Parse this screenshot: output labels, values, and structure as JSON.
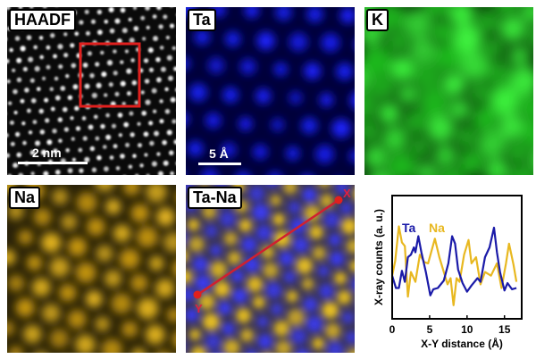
{
  "panels": {
    "haadf": {
      "label": "HAADF",
      "scale_label": "2 nm",
      "box_color": "#e0201e"
    },
    "ta": {
      "label": "Ta",
      "scale_label": "5 Å",
      "color": "#1a22ff"
    },
    "k": {
      "label": "K",
      "color": "#22d622"
    },
    "na": {
      "label": "Na",
      "color": "#e8b820"
    },
    "tana": {
      "label": "Ta-Na",
      "line_start_label": "X",
      "line_end_label": "Y",
      "line_color": "#e0201e"
    }
  },
  "chart_data": {
    "type": "line",
    "xlabel": "X-Y distance (Å)",
    "ylabel": "X-ray counts (a. u.)",
    "xlim": [
      0,
      17.3
    ],
    "ylim": [
      0,
      1
    ],
    "xticks": [
      0,
      5,
      10,
      15
    ],
    "legend_placement": "top-left",
    "series": [
      {
        "name": "Ta",
        "color": "#1a1aa8",
        "x": [
          0,
          0.5,
          0.9,
          1.3,
          1.7,
          2.1,
          2.5,
          2.9,
          3.1,
          3.5,
          3.9,
          4.5,
          5.1,
          5.5,
          6.1,
          6.9,
          7.5,
          8.0,
          8.4,
          8.8,
          9.4,
          10.0,
          10.6,
          11.4,
          11.8,
          12.4,
          13.0,
          13.6,
          14.0,
          14.4,
          15.0,
          15.4,
          16.0,
          16.6
        ],
        "y": [
          0.35,
          0.25,
          0.25,
          0.39,
          0.3,
          0.5,
          0.52,
          0.58,
          0.54,
          0.67,
          0.54,
          0.38,
          0.19,
          0.24,
          0.25,
          0.31,
          0.45,
          0.67,
          0.61,
          0.4,
          0.29,
          0.22,
          0.27,
          0.33,
          0.3,
          0.5,
          0.58,
          0.74,
          0.54,
          0.38,
          0.23,
          0.29,
          0.24,
          0.25
        ]
      },
      {
        "name": "Na",
        "color": "#e8b820",
        "x": [
          0,
          0.4,
          0.9,
          1.3,
          1.7,
          2.1,
          2.5,
          3.1,
          3.7,
          4.3,
          4.8,
          5.7,
          6.3,
          6.9,
          7.4,
          7.8,
          8.2,
          8.6,
          9.0,
          9.6,
          10.2,
          10.6,
          11.2,
          11.8,
          12.4,
          13.2,
          14.0,
          14.6,
          15.2,
          15.6,
          16.2,
          16.6
        ],
        "y": [
          0.35,
          0.47,
          0.75,
          0.62,
          0.59,
          0.18,
          0.38,
          0.3,
          0.52,
          0.46,
          0.45,
          0.65,
          0.5,
          0.38,
          0.28,
          0.33,
          0.11,
          0.33,
          0.3,
          0.52,
          0.64,
          0.45,
          0.5,
          0.28,
          0.38,
          0.35,
          0.45,
          0.25,
          0.45,
          0.61,
          0.44,
          0.3
        ]
      }
    ]
  }
}
